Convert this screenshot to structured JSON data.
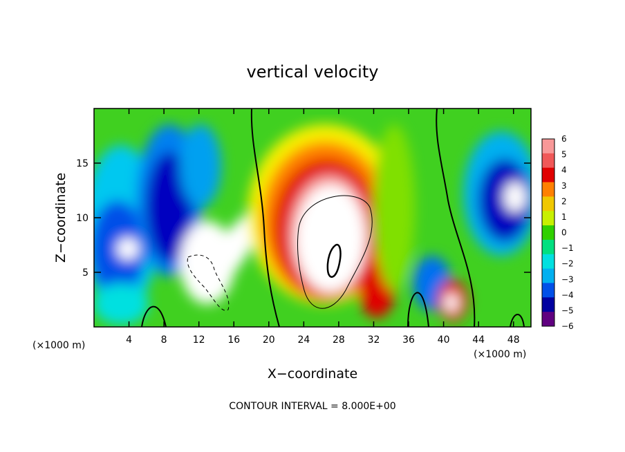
{
  "chart_data": {
    "type": "heatmap",
    "title": "vertical velocity",
    "xlabel": "X−coordinate",
    "ylabel": "Z−coordinate",
    "x_unit": "(×1000 m)",
    "footer": "CONTOUR INTERVAL = 8.000E+00",
    "xlim": [
      0,
      50
    ],
    "ylim": [
      0,
      20
    ],
    "x_ticks": [
      "4",
      "8",
      "12",
      "16",
      "20",
      "24",
      "28",
      "32",
      "36",
      "40",
      "44",
      "48"
    ],
    "x_tick_values": [
      4,
      8,
      12,
      16,
      20,
      24,
      28,
      32,
      36,
      40,
      44,
      48
    ],
    "y_ticks": [
      "5",
      "10",
      "15"
    ],
    "y_tick_values": [
      5,
      10,
      15
    ],
    "colorbar": {
      "min": -6,
      "max": 6,
      "labels": [
        "6",
        "5",
        "4",
        "3",
        "2",
        "1",
        "0",
        "−1",
        "−2",
        "−3",
        "−4",
        "−5",
        "−6"
      ],
      "label_values": [
        6,
        5,
        4,
        3,
        2,
        1,
        0,
        -1,
        -2,
        -3,
        -4,
        -5,
        -6
      ],
      "colors": [
        "#f89898",
        "#f05858",
        "#e00000",
        "#ff8000",
        "#f0c800",
        "#c8f000",
        "#30d000",
        "#00e080",
        "#00e0e0",
        "#00b0f0",
        "#0050e8",
        "#0000a0",
        "#600080"
      ]
    },
    "grid": false,
    "legend": "right"
  }
}
